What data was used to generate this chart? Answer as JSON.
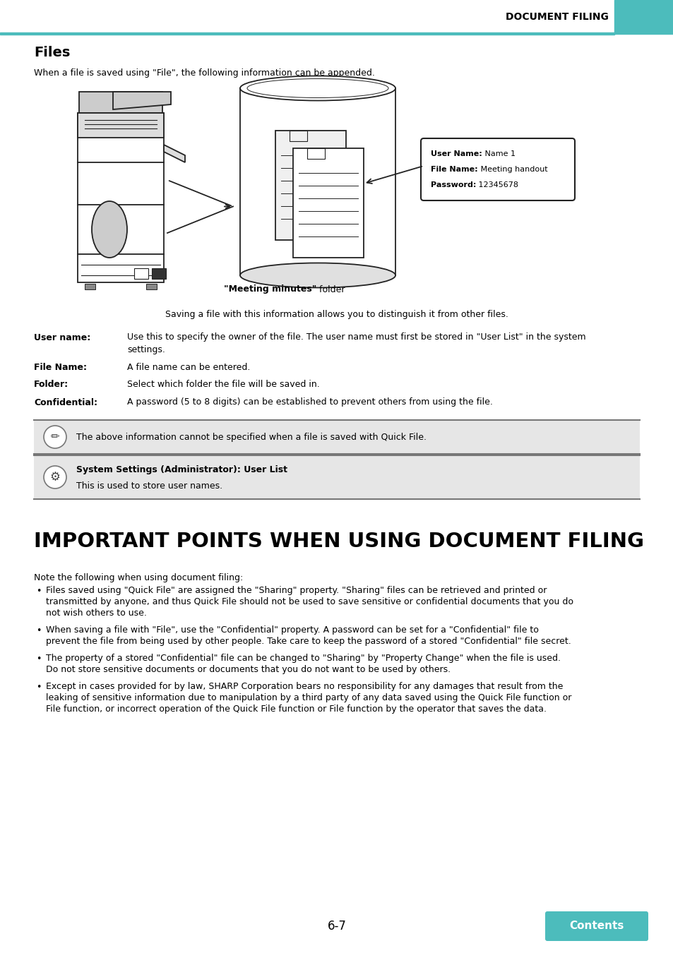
{
  "bg_color": "#ffffff",
  "teal_color": "#4CBCBC",
  "header_text": "DOCUMENT FILING",
  "section1_title": "Files",
  "section1_intro": "When a file is saved using \"File\", the following information can be appended.",
  "callout_label_bold": "\"Meeting minutes\"",
  "callout_label_normal": " folder",
  "callout_box_lines": [
    [
      "User Name:",
      " Name 1"
    ],
    [
      "File Name:",
      " Meeting handout"
    ],
    [
      "Password:",
      " 12345678"
    ]
  ],
  "saving_note": "Saving a file with this information allows you to distinguish it from other files.",
  "definitions": [
    {
      "term": "User name:",
      "desc": "Use this to specify the owner of the file. The user name must first be stored in \"User List\" in the system\nsettings."
    },
    {
      "term": "File Name:",
      "desc": "A file name can be entered."
    },
    {
      "term": "Folder:",
      "desc": "Select which folder the file will be saved in."
    },
    {
      "term": "Confidential:",
      "desc": "A password (5 to 8 digits) can be established to prevent others from using the file."
    }
  ],
  "note_box_text": "The above information cannot be specified when a file is saved with Quick File.",
  "admin_box_title": "System Settings (Administrator): User List",
  "admin_box_text": "This is used to store user names.",
  "section2_title": "IMPORTANT POINTS WHEN USING DOCUMENT FILING",
  "section2_intro": "Note the following when using document filing:",
  "bullet_points": [
    "Files saved using \"Quick File\" are assigned the \"Sharing\" property. \"Sharing\" files can be retrieved and printed or\ntransmitted by anyone, and thus Quick File should not be used to save sensitive or confidential documents that you do\nnot wish others to use.",
    "When saving a file with \"File\", use the \"Confidential\" property. A password can be set for a \"Confidential\" file to\nprevent the file from being used by other people. Take care to keep the password of a stored \"Confidential\" file secret.",
    "The property of a stored \"Confidential\" file can be changed to \"Sharing\" by \"Property Change\" when the file is used.\nDo not store sensitive documents or documents that you do not want to be used by others.",
    "Except in cases provided for by law, SHARP Corporation bears no responsibility for any damages that result from the\nleaking of sensitive information due to manipulation by a third party of any data saved using the Quick File function or\nFile function, or incorrect operation of the Quick File function or File function by the operator that saves the data."
  ],
  "page_number": "6-7",
  "contents_button_color": "#4CBCBC",
  "contents_button_text": "Contents",
  "gray_box_color": "#E6E6E6",
  "border_color": "#888888",
  "line_color": "#222222"
}
